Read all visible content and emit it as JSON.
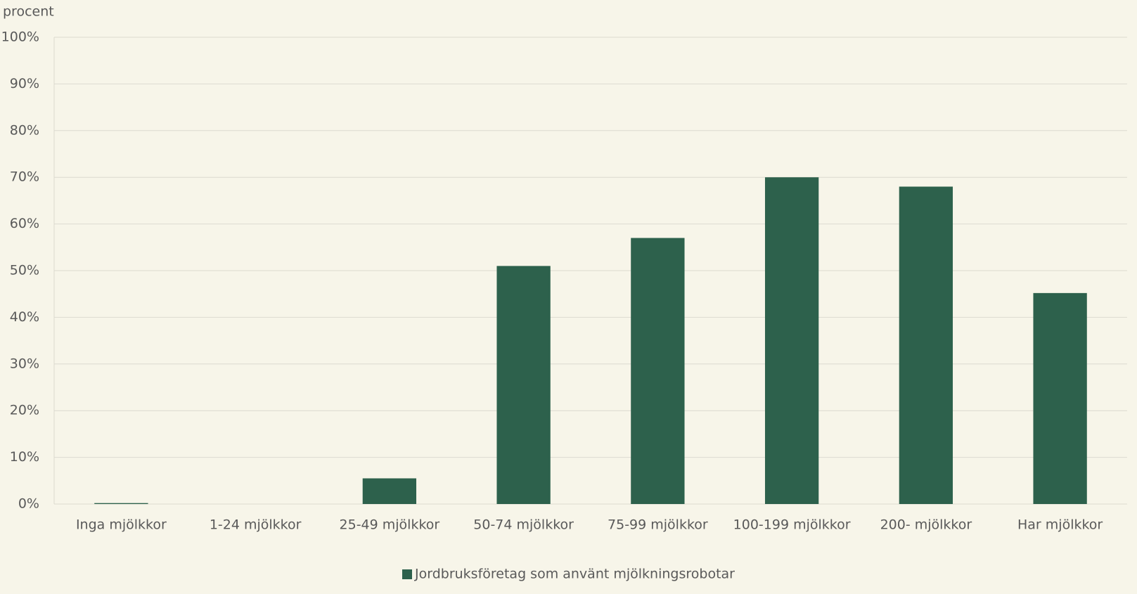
{
  "chart_data": {
    "type": "bar",
    "y_axis_label": "procent",
    "categories": [
      "Inga mjölkkor",
      "1-24 mjölkkor",
      "25-49 mjölkkor",
      "50-74 mjölkkor",
      "75-99 mjölkkor",
      "100-199 mjölkkor",
      "200- mjölkkor",
      "Har mjölkkor"
    ],
    "series": [
      {
        "name": "Jordbruksföretag som använt mjölkningsrobotar",
        "color": "#2d614c",
        "values": [
          0.2,
          0,
          5.5,
          51,
          57,
          70,
          68,
          45.2
        ]
      }
    ],
    "ylim": [
      0,
      100
    ],
    "yticks": [
      {
        "value": 0,
        "label": "0%"
      },
      {
        "value": 10,
        "label": "10%"
      },
      {
        "value": 20,
        "label": "20%"
      },
      {
        "value": 30,
        "label": "30%"
      },
      {
        "value": 40,
        "label": "40%"
      },
      {
        "value": 50,
        "label": "50%"
      },
      {
        "value": 60,
        "label": "60%"
      },
      {
        "value": 70,
        "label": "70%"
      },
      {
        "value": 80,
        "label": "80%"
      },
      {
        "value": 90,
        "label": "90%"
      },
      {
        "value": 100,
        "label": "100%"
      }
    ],
    "grid": true,
    "legend": "bottom"
  }
}
